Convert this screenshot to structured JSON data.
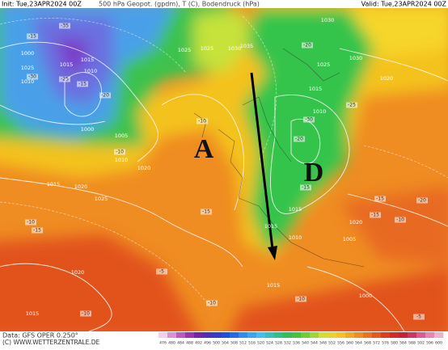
{
  "header": {
    "init": "Init: Tue,23APR2024 00Z",
    "title": "500 hPa Geopot. (gpdm), T (C), Bodendruck (hPa)",
    "valid": "Valid: Tue,23APR2024 00Z"
  },
  "map": {
    "high_label": "A",
    "low_label": "D",
    "pressure_labels": [
      "1000",
      "1025",
      "1010",
      "1015",
      "1010",
      "1000",
      "1015",
      "1020",
      "1025",
      "1030",
      "1035",
      "1025",
      "1030",
      "1020",
      "1015",
      "1010",
      "1005",
      "1010",
      "1015",
      "1020",
      "1015",
      "1010",
      "1005",
      "1015",
      "1020",
      "1025",
      "1015",
      "1020",
      "1000",
      "1030",
      "1015",
      "1025"
    ],
    "temperature_labels": [
      "-35",
      "-30",
      "-25",
      "-20",
      "-15",
      "-10",
      "-15",
      "-20",
      "-25",
      "-30",
      "-10",
      "-15",
      "-20",
      "-15",
      "-10",
      "-5",
      "-10",
      "-15",
      "-15",
      "-10",
      "-10",
      "-15",
      "-20",
      "-5",
      "-10"
    ]
  },
  "footer": {
    "source": "Data: GFS OPER 0.250°",
    "copyright": "(C) WWW.WETTERZENTRALE.DE",
    "scale_labels": [
      "476",
      "480",
      "484",
      "488",
      "492",
      "496",
      "500",
      "504",
      "508",
      "512",
      "516",
      "520",
      "524",
      "528",
      "532",
      "536",
      "540",
      "544",
      "548",
      "552",
      "556",
      "560",
      "564",
      "568",
      "572",
      "576",
      "580",
      "584",
      "588",
      "592",
      "596",
      "600"
    ]
  }
}
